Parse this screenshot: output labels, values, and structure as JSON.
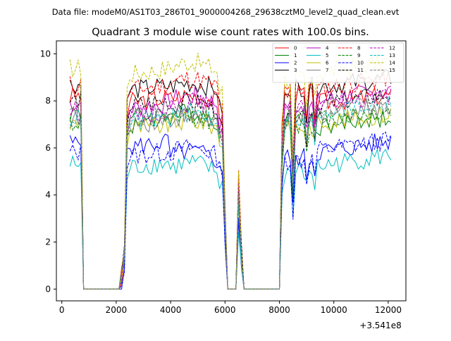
{
  "chart_data": {
    "type": "line",
    "suptitle": "Data file: modeM0/AS1T03_286T01_9000004268_29638cztM0_level2_quad_clean.evt",
    "title": "Quadrant 3 module wise count rates with 100.0s bins.",
    "xlabel": "",
    "ylabel": "",
    "x_offset_label": "+3.541e8",
    "xlim": [
      -200,
      12650
    ],
    "ylim": [
      -0.5,
      10.55
    ],
    "xticks": [
      0,
      2000,
      4000,
      6000,
      8000,
      10000,
      12000
    ],
    "xtick_labels": [
      "0",
      "2000",
      "4000",
      "6000",
      "8000",
      "10000",
      "12000"
    ],
    "yticks": [
      0,
      2,
      4,
      6,
      8,
      10
    ],
    "ytick_labels": [
      "0",
      "2",
      "4",
      "6",
      "8",
      "10"
    ],
    "grid": false,
    "legend_position": "top-right",
    "legend_columns": 4,
    "series_note": "values are approximate segment-mean count rates per 100 s bin; x in seconds relative to offset",
    "series": [
      {
        "name": "0",
        "color": "#ff0000",
        "dash": "solid",
        "seg": [
          8.2,
          8.0,
          8.3,
          7.9
        ]
      },
      {
        "name": "1",
        "color": "#008000",
        "dash": "solid",
        "seg": [
          7.5,
          7.2,
          7.4,
          6.9
        ]
      },
      {
        "name": "2",
        "color": "#0000ff",
        "dash": "solid",
        "seg": [
          6.2,
          5.5,
          5.6,
          5.8
        ]
      },
      {
        "name": "3",
        "color": "#000000",
        "dash": "solid",
        "seg": [
          8.7,
          8.5,
          8.6,
          8.6
        ]
      },
      {
        "name": "4",
        "color": "#bf00bf",
        "dash": "solid",
        "seg": [
          7.9,
          7.9,
          7.8,
          8.0
        ]
      },
      {
        "name": "5",
        "color": "#00bfbf",
        "dash": "solid",
        "seg": [
          5.3,
          5.0,
          5.0,
          5.2
        ]
      },
      {
        "name": "6",
        "color": "#bfbf00",
        "dash": "solid",
        "seg": [
          7.0,
          6.9,
          6.9,
          7.1
        ]
      },
      {
        "name": "7",
        "color": "#808080",
        "dash": "solid",
        "seg": [
          7.2,
          7.1,
          7.2,
          7.4
        ]
      },
      {
        "name": "8",
        "color": "#ff0000",
        "dash": "dashed",
        "seg": [
          8.7,
          8.6,
          8.5,
          8.5
        ]
      },
      {
        "name": "9",
        "color": "#008000",
        "dash": "dashed",
        "seg": [
          7.1,
          7.1,
          7.0,
          7.2
        ]
      },
      {
        "name": "10",
        "color": "#0000ff",
        "dash": "dashed",
        "seg": [
          5.8,
          5.7,
          5.5,
          5.9
        ]
      },
      {
        "name": "11",
        "color": "#000000",
        "dash": "dashed",
        "seg": [
          8.0,
          7.6,
          7.5,
          7.8
        ]
      },
      {
        "name": "12",
        "color": "#bf00bf",
        "dash": "dashed",
        "seg": [
          7.6,
          7.7,
          7.6,
          7.9
        ]
      },
      {
        "name": "13",
        "color": "#00bfbf",
        "dash": "dashed",
        "seg": [
          7.3,
          7.2,
          7.1,
          7.5
        ]
      },
      {
        "name": "14",
        "color": "#bfbf00",
        "dash": "dashed",
        "seg": [
          9.4,
          9.3,
          8.9,
          9.2
        ]
      },
      {
        "name": "15",
        "color": "#808080",
        "dash": "dashed",
        "seg": [
          7.4,
          7.2,
          7.3,
          7.6
        ]
      }
    ]
  }
}
